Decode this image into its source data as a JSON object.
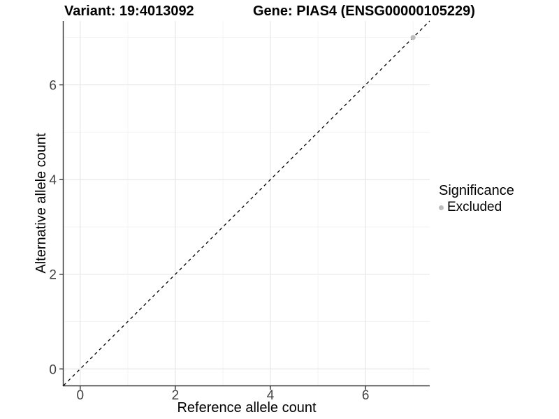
{
  "header": {
    "variant_title": "Variant: 19:4013092",
    "gene_title": "Gene: PIAS4 (ENSG00000105229)"
  },
  "chart_data": {
    "type": "scatter",
    "xlabel": "Reference allele count",
    "ylabel": "Alternative allele count",
    "xlim": [
      -0.35,
      7.35
    ],
    "ylim": [
      -0.35,
      7.35
    ],
    "x_ticks": [
      0,
      2,
      4,
      6
    ],
    "y_ticks": [
      0,
      2,
      4,
      6
    ],
    "x_minor_ticks": [
      1,
      3,
      5,
      7
    ],
    "y_minor_ticks": [
      1,
      3,
      5,
      7
    ],
    "grid": true,
    "reference_line": {
      "type": "identity",
      "style": "dashed",
      "color": "#000000"
    },
    "series": [
      {
        "name": "Excluded",
        "color": "#bdbdbd",
        "points": [
          {
            "x": 7,
            "y": 7
          }
        ]
      }
    ],
    "legend": {
      "title": "Significance",
      "position": "right",
      "entries": [
        {
          "label": "Excluded",
          "color": "#bdbdbd"
        }
      ]
    },
    "colors": {
      "background": "#ffffff",
      "axis_line": "#333333",
      "tick_label": "#404040",
      "grid_major": "#e7e7e7",
      "grid_minor": "#f2f2f2",
      "point_excluded": "#bdbdbd"
    }
  }
}
